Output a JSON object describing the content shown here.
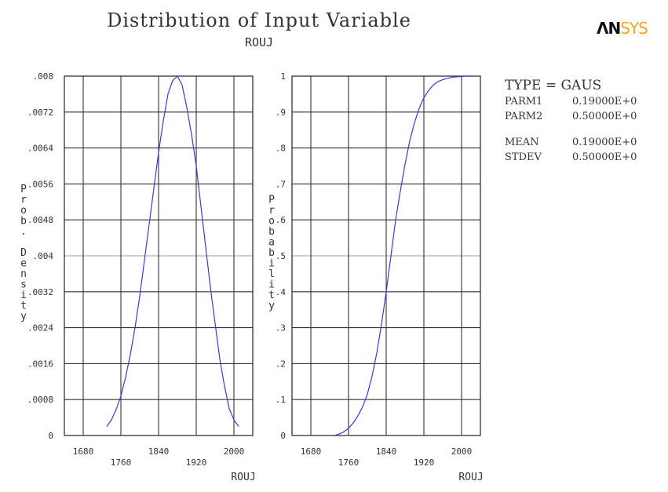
{
  "title": "Distribution of Input Variable",
  "subtitle": "ROUJ",
  "logo": {
    "part1": "ΛN",
    "part2": "SYS"
  },
  "info": {
    "type_label": "TYPE = GAUS",
    "rows": [
      {
        "key": "PARM1",
        "value": "0.19000E+0"
      },
      {
        "key": "PARM2",
        "value": "0.50000E+0"
      }
    ],
    "stats": [
      {
        "key": "MEAN",
        "value": "0.19000E+0"
      },
      {
        "key": "STDEV",
        "value": "0.50000E+0"
      }
    ]
  },
  "colors": {
    "curve": "#3a3ad6",
    "grid": "#333333",
    "midline": "#bdbdbd"
  },
  "chart_data": [
    {
      "type": "line",
      "ylabel": "Prob. Density",
      "xlabel": "ROUJ",
      "xlim": [
        1640,
        2040
      ],
      "ylim": [
        0,
        0.008
      ],
      "x_ticks": [
        {
          "value": 1680,
          "label": "1680"
        },
        {
          "value": 1760,
          "label": "1760"
        },
        {
          "value": 1840,
          "label": "1840"
        },
        {
          "value": 1920,
          "label": "1920"
        },
        {
          "value": 2000,
          "label": "2000"
        }
      ],
      "y_ticks": [
        {
          "value": 0,
          "label": "0"
        },
        {
          "value": 0.0008,
          "label": ".0008"
        },
        {
          "value": 0.0016,
          "label": ".0016"
        },
        {
          "value": 0.0024,
          "label": ".0024"
        },
        {
          "value": 0.0032,
          "label": ".0032"
        },
        {
          "value": 0.004,
          "label": ".004"
        },
        {
          "value": 0.0048,
          "label": ".0048"
        },
        {
          "value": 0.0056,
          "label": ".0056"
        },
        {
          "value": 0.0064,
          "label": ".0064"
        },
        {
          "value": 0.0072,
          "label": ".0072"
        },
        {
          "value": 0.008,
          "label": ".008"
        }
      ],
      "series": [
        {
          "x": [
            1730,
            1740,
            1750,
            1760,
            1770,
            1780,
            1790,
            1800,
            1810,
            1820,
            1830,
            1840,
            1850,
            1860,
            1870,
            1880,
            1890,
            1900,
            1910,
            1920,
            1930,
            1940,
            1950,
            1960,
            1970,
            1980,
            1990,
            2000,
            2010
          ],
          "y": [
            0.0002,
            0.00035,
            0.00058,
            0.00088,
            0.0013,
            0.0018,
            0.0024,
            0.0031,
            0.0039,
            0.0047,
            0.0055,
            0.0063,
            0.007,
            0.0076,
            0.0079,
            0.008,
            0.0078,
            0.0073,
            0.0067,
            0.006,
            0.0051,
            0.0042,
            0.0033,
            0.0025,
            0.0017,
            0.0011,
            0.0006,
            0.00035,
            0.0002
          ]
        }
      ]
    },
    {
      "type": "line",
      "ylabel": "Probability",
      "xlabel": "ROUJ",
      "xlim": [
        1640,
        2040
      ],
      "ylim": [
        0,
        1
      ],
      "x_ticks": [
        {
          "value": 1680,
          "label": "1680"
        },
        {
          "value": 1760,
          "label": "1760"
        },
        {
          "value": 1840,
          "label": "1840"
        },
        {
          "value": 1920,
          "label": "1920"
        },
        {
          "value": 2000,
          "label": "2000"
        }
      ],
      "y_ticks": [
        {
          "value": 0,
          "label": "0"
        },
        {
          "value": 0.1,
          "label": ".1"
        },
        {
          "value": 0.2,
          "label": ".2"
        },
        {
          "value": 0.3,
          "label": ".3"
        },
        {
          "value": 0.4,
          "label": ".4"
        },
        {
          "value": 0.5,
          "label": ".5"
        },
        {
          "value": 0.6,
          "label": ".6"
        },
        {
          "value": 0.7,
          "label": ".7"
        },
        {
          "value": 0.8,
          "label": ".8"
        },
        {
          "value": 0.9,
          "label": ".9"
        },
        {
          "value": 1,
          "label": "1"
        }
      ],
      "series": [
        {
          "x": [
            1730,
            1740,
            1750,
            1760,
            1770,
            1780,
            1790,
            1800,
            1810,
            1820,
            1830,
            1840,
            1850,
            1860,
            1870,
            1880,
            1890,
            1900,
            1910,
            1920,
            1930,
            1940,
            1950,
            1960,
            1970,
            1980,
            1990,
            2000,
            2010,
            2020
          ],
          "y": [
            0.0,
            0.004,
            0.01,
            0.02,
            0.035,
            0.055,
            0.08,
            0.115,
            0.165,
            0.23,
            0.31,
            0.4,
            0.5,
            0.6,
            0.68,
            0.755,
            0.82,
            0.87,
            0.91,
            0.94,
            0.96,
            0.975,
            0.985,
            0.99,
            0.994,
            0.997,
            0.998,
            0.999,
            1.0,
            1.0
          ]
        }
      ]
    }
  ]
}
